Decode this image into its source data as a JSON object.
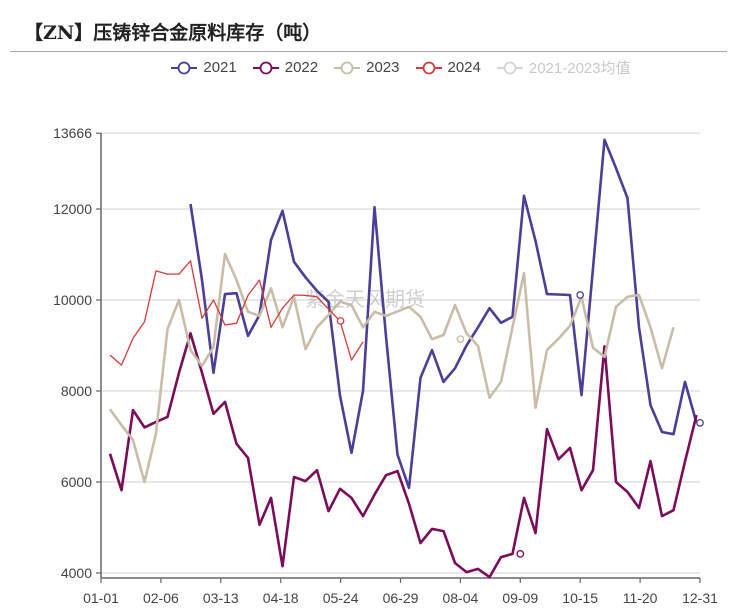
{
  "title": "【ZN】压铸锌合金原料库存（吨）",
  "watermark": "紫金天风期货",
  "legend": [
    {
      "label": "2021",
      "color": "#4b3f97",
      "muted": false
    },
    {
      "label": "2022",
      "color": "#7b0c5a",
      "muted": false
    },
    {
      "label": "2023",
      "color": "#c9bca8",
      "muted": false
    },
    {
      "label": "2024",
      "color": "#d63b3b",
      "muted": false
    },
    {
      "label": "2021-2023均值",
      "color": "#d5d5d5",
      "muted": true
    }
  ],
  "chart_data": {
    "type": "line",
    "title": "【ZN】压铸锌合金原料库存（吨）",
    "xlabel": "",
    "ylabel": "吨",
    "ylim": [
      3900,
      13666
    ],
    "yticks": [
      4000,
      6000,
      8000,
      10000,
      12000,
      13666
    ],
    "xticks": [
      "01-01",
      "02-06",
      "03-13",
      "04-18",
      "05-24",
      "06-29",
      "08-04",
      "09-09",
      "10-15",
      "11-20",
      "12-31"
    ],
    "x_unit": "week index (0 = first week of Jan, 52 = last week of Dec)",
    "grid": true,
    "legend_position": "top",
    "series": [
      {
        "name": "2021",
        "color": "#4b3f97",
        "start_week": 7,
        "values": [
          12110,
          10440,
          8400,
          10130,
          10150,
          9210,
          9670,
          11320,
          11960,
          10840,
          10500,
          10200,
          9960,
          7900,
          6640,
          8000,
          12040,
          9200,
          6600,
          5870,
          8290,
          8900,
          8200,
          8500,
          9000,
          9400,
          9820,
          9500,
          9630,
          12290,
          11300,
          10130,
          10120,
          10110,
          7910,
          10700,
          13520,
          12900,
          12240,
          9400,
          7690,
          7100,
          7050,
          8200,
          7300
        ]
      },
      {
        "name": "2022",
        "color": "#7b0c5a",
        "start_week": 0,
        "values": [
          6620,
          5820,
          7580,
          7200,
          7320,
          7430,
          8400,
          9270,
          8400,
          7500,
          7760,
          6840,
          6530,
          5060,
          5650,
          4150,
          6110,
          6020,
          6260,
          5360,
          5850,
          5650,
          5250,
          5720,
          6150,
          6240,
          5520,
          4660,
          4970,
          4920,
          4220,
          4020,
          4090,
          3910,
          4350,
          4420,
          5650,
          4880,
          7160,
          6500,
          6750,
          5820,
          6260,
          8980,
          6000,
          5780,
          5430,
          6460,
          5250,
          5380,
          6450,
          7470
        ]
      },
      {
        "name": "2023",
        "color": "#c9bca8",
        "start_week": 0,
        "values": [
          7600,
          7250,
          6920,
          6000,
          7070,
          9360,
          10000,
          8900,
          8550,
          8970,
          11010,
          10440,
          9740,
          9650,
          10260,
          9400,
          10070,
          8920,
          9400,
          9670,
          9960,
          9890,
          9400,
          9740,
          9650,
          9750,
          9850,
          9630,
          9140,
          9230,
          9890,
          9270,
          8990,
          7850,
          8200,
          9400,
          10590,
          7630,
          8900,
          9150,
          9430,
          10070,
          8950,
          8750,
          9850,
          10070,
          10110,
          9400,
          8500,
          9400
        ]
      },
      {
        "name": "2024",
        "color": "#d63b3b",
        "start_week": 0,
        "values": [
          8790,
          8570,
          9160,
          9520,
          10640,
          10570,
          10570,
          10860,
          9600,
          10000,
          9450,
          9490,
          10100,
          10440,
          9400,
          9820,
          10110,
          10100,
          10070,
          9800,
          9540,
          8680,
          9080
        ]
      }
    ],
    "markers": [
      {
        "series": "2021",
        "label": "10-15",
        "value": 10110
      },
      {
        "series": "2021",
        "label": "12-31",
        "value": 7300
      },
      {
        "series": "2022",
        "label": "09-09",
        "value": 4420
      },
      {
        "series": "2023",
        "label": "08-04",
        "value": 9140
      },
      {
        "series": "2024",
        "label": "05-24",
        "value": 9540
      }
    ]
  }
}
